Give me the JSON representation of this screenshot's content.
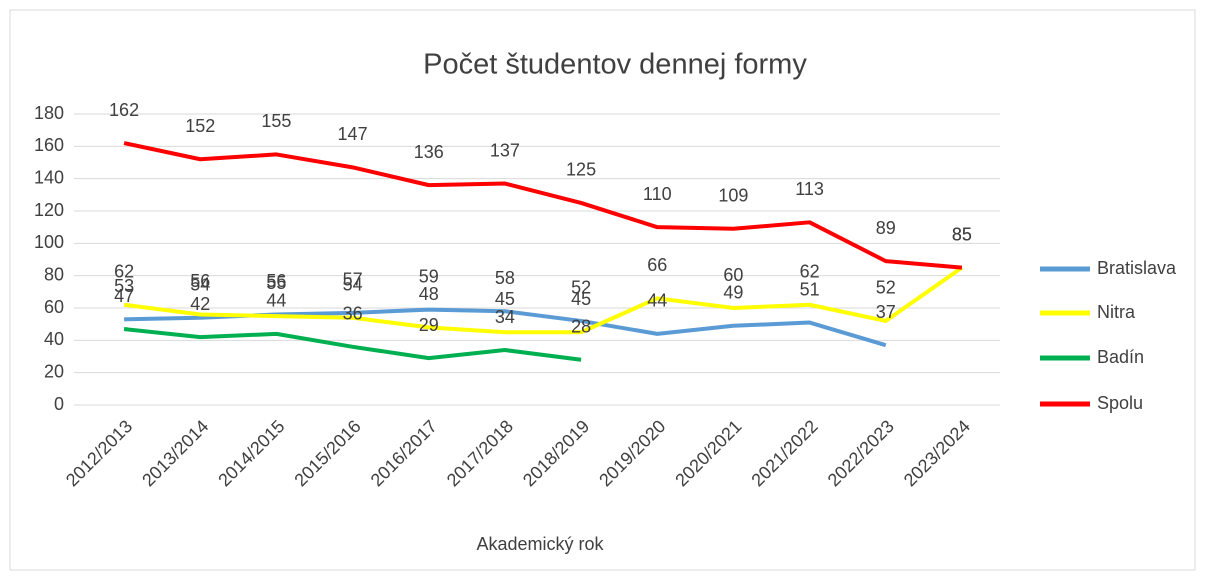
{
  "chart_data": {
    "type": "line",
    "title": "Počet študentov dennej formy",
    "x_label": "Akademický rok",
    "categories": [
      "2012/2013",
      "2013/2014",
      "2014/2015",
      "2015/2016",
      "2016/2017",
      "2017/2018",
      "2018/2019",
      "2019/2020",
      "2020/2021",
      "2021/2022",
      "2022/2023",
      "2023/2024"
    ],
    "series": [
      {
        "name": "Bratislava",
        "color": "#5b9bd5",
        "values": [
          53,
          54,
          56,
          57,
          59,
          58,
          52,
          44,
          49,
          51,
          37,
          null
        ]
      },
      {
        "name": "Nitra",
        "color": "#ffff00",
        "values": [
          62,
          56,
          55,
          54,
          48,
          45,
          45,
          66,
          60,
          62,
          52,
          85
        ]
      },
      {
        "name": "Badín",
        "color": "#00b050",
        "values": [
          47,
          42,
          44,
          36,
          29,
          34,
          28,
          null,
          null,
          null,
          null,
          null
        ]
      },
      {
        "name": "Spolu",
        "color": "#ff0000",
        "values": [
          162,
          152,
          155,
          147,
          136,
          137,
          125,
          110,
          109,
          113,
          89,
          85
        ]
      }
    ],
    "ylim": [
      0,
      180
    ],
    "yticks": [
      0,
      20,
      40,
      60,
      80,
      100,
      120,
      140,
      160,
      180
    ],
    "grid": true,
    "legend": "right",
    "data_labels": true
  }
}
